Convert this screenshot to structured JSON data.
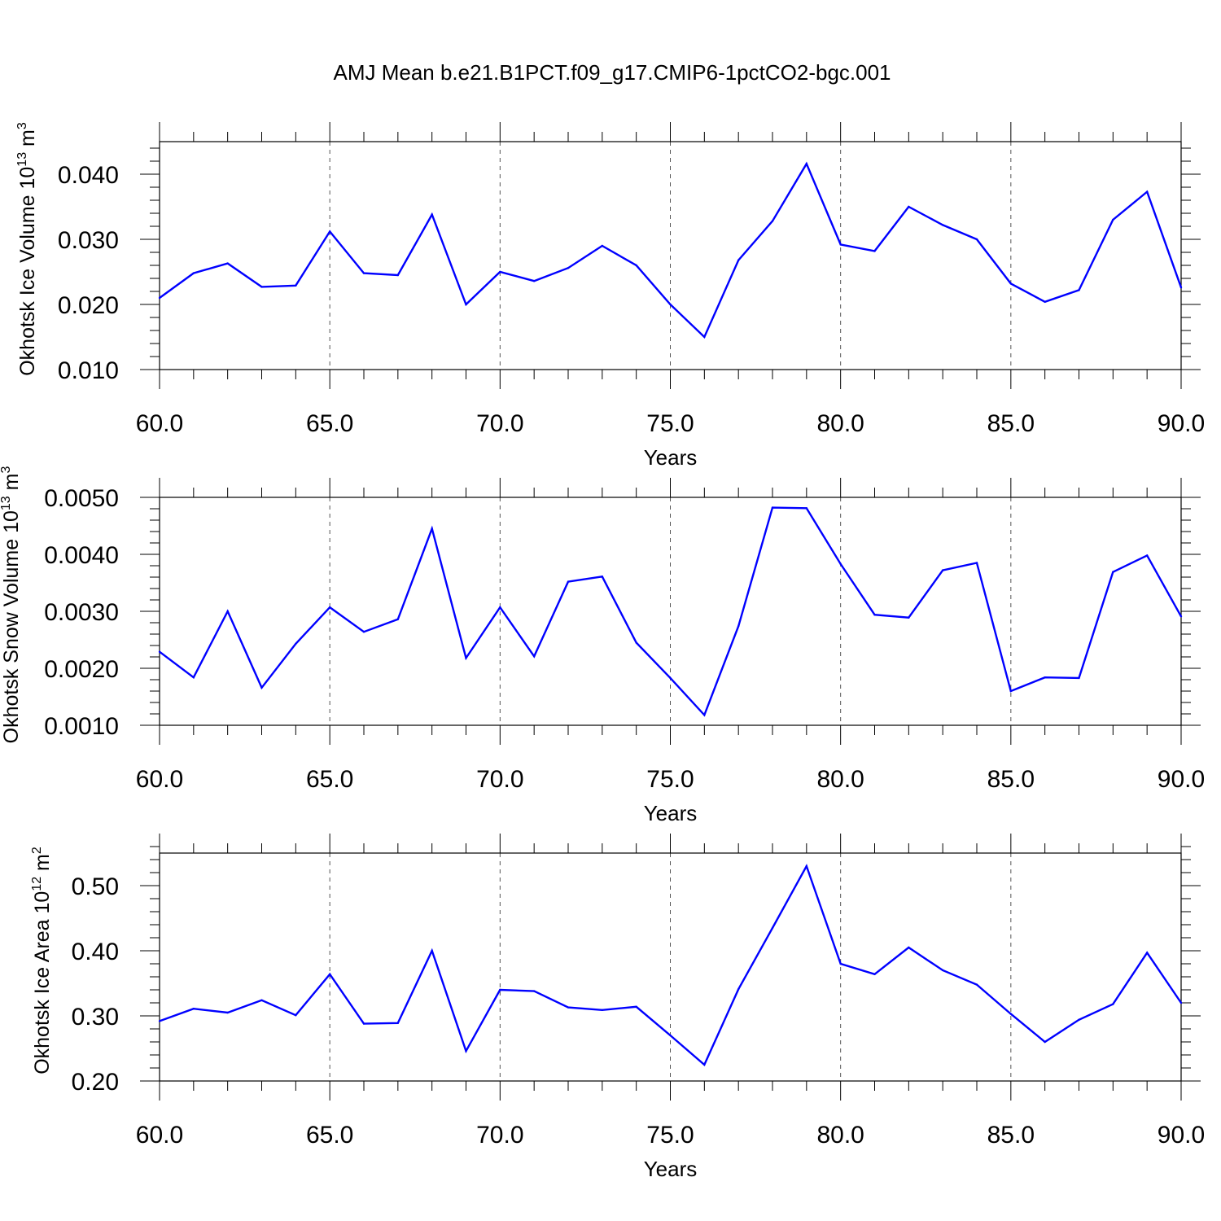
{
  "title": "AMJ Mean b.e21.B1PCT.f09_g17.CMIP6-1pctCO2-bgc.001",
  "series_color": "#0000ff",
  "chart_data": [
    {
      "type": "line",
      "xlabel": "Years",
      "ylabel": {
        "text": "Okhotsk Ice Volume 10",
        "exponent": "13",
        "unit": "m",
        "unit_exponent": "3"
      },
      "xlim": [
        60,
        90
      ],
      "ylim": [
        0.01,
        0.045
      ],
      "x_ticks": [
        60,
        65,
        70,
        75,
        80,
        85,
        90
      ],
      "x_tick_labels": [
        "60.0",
        "65.0",
        "70.0",
        "75.0",
        "80.0",
        "85.0",
        "90.0"
      ],
      "y_ticks": [
        0.01,
        0.02,
        0.03,
        0.04
      ],
      "y_tick_labels": [
        "0.010",
        "0.020",
        "0.030",
        "0.040"
      ],
      "grid": "vertical dashed at major x ticks",
      "x": [
        60,
        61,
        62,
        63,
        64,
        65,
        66,
        67,
        68,
        69,
        70,
        71,
        72,
        73,
        74,
        75,
        76,
        77,
        78,
        79,
        80,
        81,
        82,
        83,
        84,
        85,
        86,
        87,
        88,
        89,
        90
      ],
      "y": [
        0.021,
        0.0248,
        0.0263,
        0.0227,
        0.0229,
        0.0312,
        0.0248,
        0.0245,
        0.0338,
        0.02,
        0.025,
        0.0236,
        0.0256,
        0.029,
        0.026,
        0.02,
        0.015,
        0.0268,
        0.0328,
        0.0416,
        0.0292,
        0.0282,
        0.035,
        0.0322,
        0.03,
        0.0232,
        0.0204,
        0.0222,
        0.033,
        0.0373,
        0.0226
      ]
    },
    {
      "type": "line",
      "xlabel": "Years",
      "ylabel": {
        "text": "Okhotsk Snow Volume 10",
        "exponent": "13",
        "unit": "m",
        "unit_exponent": "3"
      },
      "xlim": [
        60,
        90
      ],
      "ylim": [
        0.001,
        0.005
      ],
      "x_ticks": [
        60,
        65,
        70,
        75,
        80,
        85,
        90
      ],
      "x_tick_labels": [
        "60.0",
        "65.0",
        "70.0",
        "75.0",
        "80.0",
        "85.0",
        "90.0"
      ],
      "y_ticks": [
        0.001,
        0.002,
        0.003,
        0.004,
        0.005
      ],
      "y_tick_labels": [
        "0.0010",
        "0.0020",
        "0.0030",
        "0.0040",
        "0.0050"
      ],
      "grid": "vertical dashed at major x ticks",
      "x": [
        60,
        61,
        62,
        63,
        64,
        65,
        66,
        67,
        68,
        69,
        70,
        71,
        72,
        73,
        74,
        75,
        76,
        77,
        78,
        79,
        80,
        81,
        82,
        83,
        84,
        85,
        86,
        87,
        88,
        89,
        90
      ],
      "y": [
        0.00229,
        0.00184,
        0.003,
        0.00166,
        0.00243,
        0.00307,
        0.00264,
        0.00286,
        0.00445,
        0.00218,
        0.00307,
        0.00221,
        0.00352,
        0.00361,
        0.00245,
        0.00183,
        0.00118,
        0.00274,
        0.00482,
        0.00481,
        0.00383,
        0.00294,
        0.00289,
        0.00372,
        0.00385,
        0.0016,
        0.00184,
        0.00183,
        0.00369,
        0.00398,
        0.00291
      ]
    },
    {
      "type": "line",
      "xlabel": "Years",
      "ylabel": {
        "text": "Okhotsk Ice Area 10",
        "exponent": "12",
        "unit": "m",
        "unit_exponent": "2"
      },
      "xlim": [
        60,
        90
      ],
      "ylim": [
        0.2,
        0.55
      ],
      "x_ticks": [
        60,
        65,
        70,
        75,
        80,
        85,
        90
      ],
      "x_tick_labels": [
        "60.0",
        "65.0",
        "70.0",
        "75.0",
        "80.0",
        "85.0",
        "90.0"
      ],
      "y_ticks": [
        0.2,
        0.3,
        0.4,
        0.5
      ],
      "y_tick_labels": [
        "0.20",
        "0.30",
        "0.40",
        "0.50"
      ],
      "grid": "vertical dashed at major x ticks",
      "x": [
        60,
        61,
        62,
        63,
        64,
        65,
        66,
        67,
        68,
        69,
        70,
        71,
        72,
        73,
        74,
        75,
        76,
        77,
        78,
        79,
        80,
        81,
        82,
        83,
        84,
        85,
        86,
        87,
        88,
        89,
        90
      ],
      "y": [
        0.292,
        0.311,
        0.305,
        0.324,
        0.301,
        0.364,
        0.288,
        0.289,
        0.4,
        0.246,
        0.34,
        0.338,
        0.313,
        0.309,
        0.314,
        0.27,
        0.225,
        0.341,
        0.435,
        0.53,
        0.38,
        0.364,
        0.405,
        0.37,
        0.348,
        0.303,
        0.26,
        0.294,
        0.318,
        0.397,
        0.32
      ]
    }
  ]
}
